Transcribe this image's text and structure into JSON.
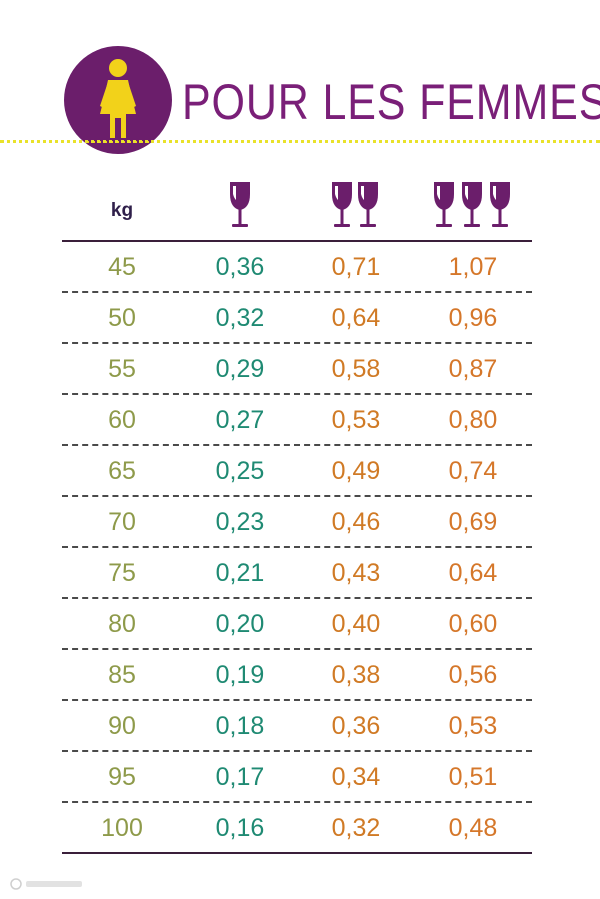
{
  "header": {
    "title": "POUR LES FEMMES",
    "badge_icon": "woman-icon",
    "colors": {
      "accent": "#6b1e6b",
      "figure": "#f2d21a",
      "dots": "#e9e22a"
    }
  },
  "table": {
    "columns": [
      {
        "label": "kg"
      },
      {
        "icon": "wine-glass-icon",
        "glasses": 1
      },
      {
        "icon": "two-wine-glasses-icon",
        "glasses": 2
      },
      {
        "icon": "three-wine-glasses-icon",
        "glasses": 3
      }
    ],
    "rows": [
      {
        "kg": "45",
        "v1": "0,36",
        "v2": "0,71",
        "v3": "1,07"
      },
      {
        "kg": "50",
        "v1": "0,32",
        "v2": "0,64",
        "v3": "0,96"
      },
      {
        "kg": "55",
        "v1": "0,29",
        "v2": "0,58",
        "v3": "0,87"
      },
      {
        "kg": "60",
        "v1": "0,27",
        "v2": "0,53",
        "v3": "0,80"
      },
      {
        "kg": "65",
        "v1": "0,25",
        "v2": "0,49",
        "v3": "0,74"
      },
      {
        "kg": "70",
        "v1": "0,23",
        "v2": "0,46",
        "v3": "0,69"
      },
      {
        "kg": "75",
        "v1": "0,21",
        "v2": "0,43",
        "v3": "0,64"
      },
      {
        "kg": "80",
        "v1": "0,20",
        "v2": "0,40",
        "v3": "0,60"
      },
      {
        "kg": "85",
        "v1": "0,19",
        "v2": "0,38",
        "v3": "0,56"
      },
      {
        "kg": "90",
        "v1": "0,18",
        "v2": "0,36",
        "v3": "0,53"
      },
      {
        "kg": "95",
        "v1": "0,17",
        "v2": "0,34",
        "v3": "0,51"
      },
      {
        "kg": "100",
        "v1": "0,16",
        "v2": "0,32",
        "v3": "0,48"
      }
    ],
    "colors": {
      "kg": "#8e9a4a",
      "v1": "#1f8a73",
      "v2": "#d07a25",
      "v3": "#d5772a",
      "glass": "#6b1e6b"
    }
  },
  "watermark": {
    "icon": "watermark-logo-icon"
  }
}
